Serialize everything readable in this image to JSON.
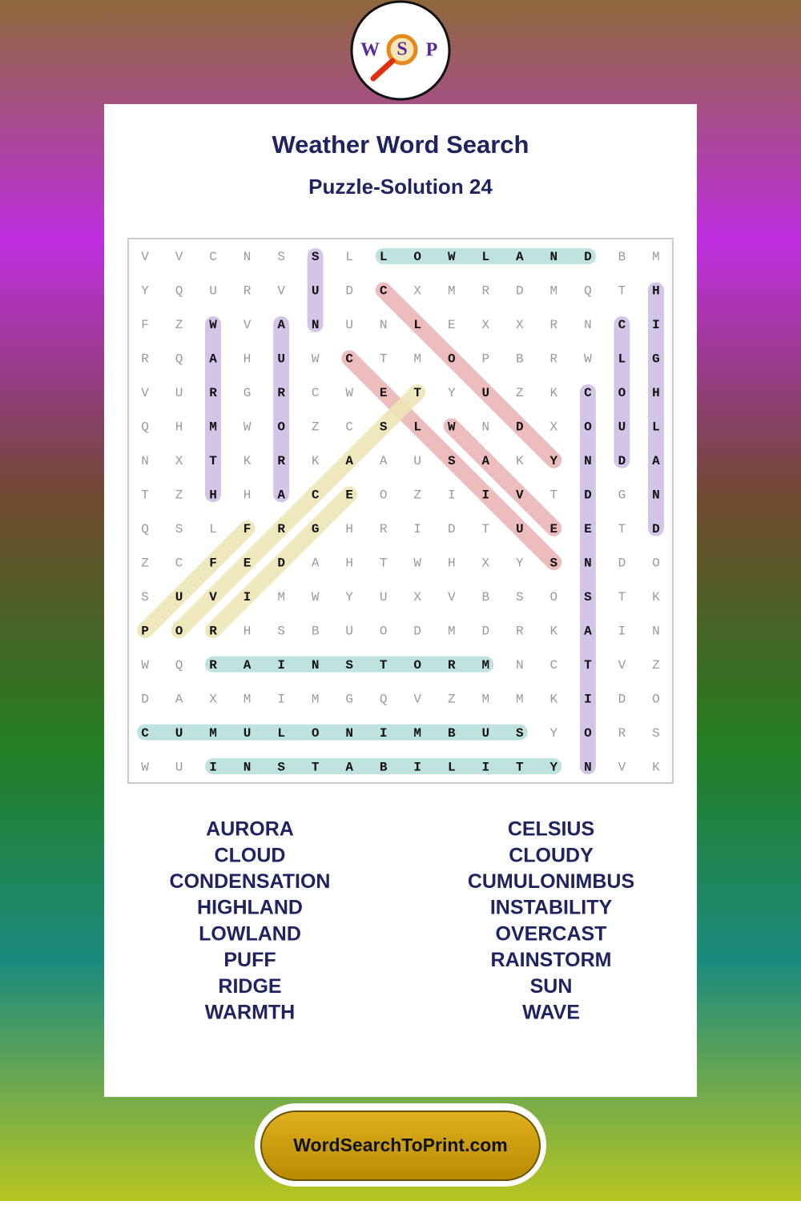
{
  "logo": {
    "letters": [
      "W",
      "S",
      "P"
    ]
  },
  "header": {
    "title": "Weather Word Search",
    "subtitle": "Puzzle-Solution 24"
  },
  "grid": {
    "rows": [
      "VVCNSSLLOWLANDBM",
      "YQURVUDCXMRDMQTH",
      "FZWVANUNLEXXRNCI",
      "RQAHUWCTMOPBRWLG",
      "VURGRCWETYUZKCOH",
      "QHMWOZCSLWNDXOUL",
      "NXTKRKAAUSAKYNDA",
      "TZHHACEOZIIVTDGN",
      "QSLFRGHRIDTUEETD",
      "ZCFEDAHTWHXYSNDO",
      "SUVIMWYUXVBSOSTK",
      "PORHSBUODMDRKAIN",
      "WQRAINSTORMNCTVZ",
      "DAXMIMGQVZMMKIDO",
      "CUMULONIMBUSYORS",
      "WUINSTABILITYNVK"
    ]
  },
  "words": {
    "left": [
      "AURORA",
      "CLOUD",
      "CONDENSATION",
      "HIGHLAND",
      "LOWLAND",
      "PUFF",
      "RIDGE",
      "WARMTH"
    ],
    "right": [
      "CELSIUS",
      "CLOUDY",
      "CUMULONIMBUS",
      "INSTABILITY",
      "OVERCAST",
      "RAINSTORM",
      "SUN",
      "WAVE"
    ]
  },
  "footer": {
    "site": "WordSearchToPrint.com"
  }
}
